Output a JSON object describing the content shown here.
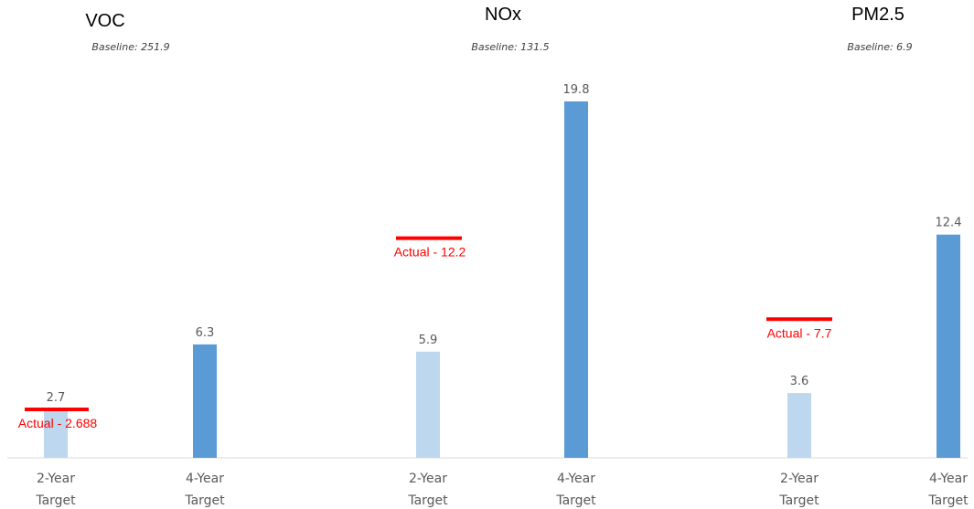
{
  "chart_data": {
    "type": "bar",
    "colors": {
      "two_year": "#bdd7ee",
      "four_year": "#5b9bd5",
      "actual": "#ff0000",
      "axis": "#d9d9d9"
    },
    "panels": [
      {
        "title": "VOC",
        "baseline_label": "Baseline: 251.9",
        "bars": [
          {
            "category": [
              "2-Year",
              "Target"
            ],
            "value": 2.7,
            "label": "2.7",
            "kind": "two_year"
          },
          {
            "category": [
              "4-Year",
              "Target"
            ],
            "value": 6.3,
            "label": "6.3",
            "kind": "four_year"
          }
        ],
        "actual": {
          "value": 2.688,
          "label": "Actual - 2.688"
        }
      },
      {
        "title": "NOx",
        "baseline_label": "Baseline: 131.5",
        "bars": [
          {
            "category": [
              "2-Year",
              "Target"
            ],
            "value": 5.9,
            "label": "5.9",
            "kind": "two_year"
          },
          {
            "category": [
              "4-Year",
              "Target"
            ],
            "value": 19.8,
            "label": "19.8",
            "kind": "four_year"
          }
        ],
        "actual": {
          "value": 12.2,
          "label": "Actual - 12.2"
        }
      },
      {
        "title": "PM2.5",
        "baseline_label": "Baseline: 6.9",
        "bars": [
          {
            "category": [
              "2-Year",
              "Target"
            ],
            "value": 3.6,
            "label": "3.6",
            "kind": "two_year"
          },
          {
            "category": [
              "4-Year",
              "Target"
            ],
            "value": 12.4,
            "label": "12.4",
            "kind": "four_year"
          }
        ],
        "actual": {
          "value": 7.7,
          "label": "Actual - 7.7"
        }
      }
    ]
  }
}
